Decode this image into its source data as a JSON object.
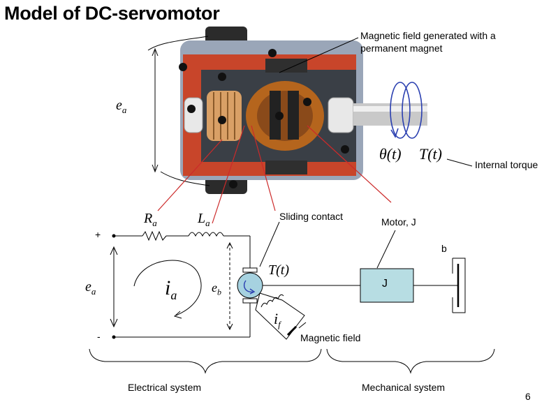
{
  "title": "Model of DC-servomotor",
  "photo_labels": {
    "magnetic_field": "Magnetic field generated with a permanent magnet",
    "magnetic_field_line1": "Magnetic field generated with a",
    "magnetic_field_line2": "permanent magnet",
    "internal_torque": "Internal torque",
    "theta": "θ(t)",
    "torque": "T(t)",
    "ea": "e",
    "ea_sub": "a"
  },
  "circuit": {
    "Ra": "R",
    "Ra_sub": "a",
    "La": "L",
    "La_sub": "a",
    "plus": "+",
    "minus": "-",
    "ea": "e",
    "ea_sub": "a",
    "ia": "i",
    "ia_sub": "a",
    "eb": "e",
    "eb_sub": "b",
    "if": "i",
    "if_sub": "f",
    "torque": "T(t)",
    "sliding_contact": "Sliding contact",
    "magnetic_field": "Magnetic field"
  },
  "mechanical": {
    "motor_label": "Motor, J",
    "inertia": "J",
    "damper": "b"
  },
  "groups": {
    "electrical": "Electrical system",
    "mechanical": "Mechanical system"
  },
  "page_number": "6",
  "colors": {
    "motor_housing": "#c8452a",
    "j_box": "#b7dde3",
    "rotation_arrow": "#2a3fb0",
    "leader_line": "#cc2a2a"
  }
}
